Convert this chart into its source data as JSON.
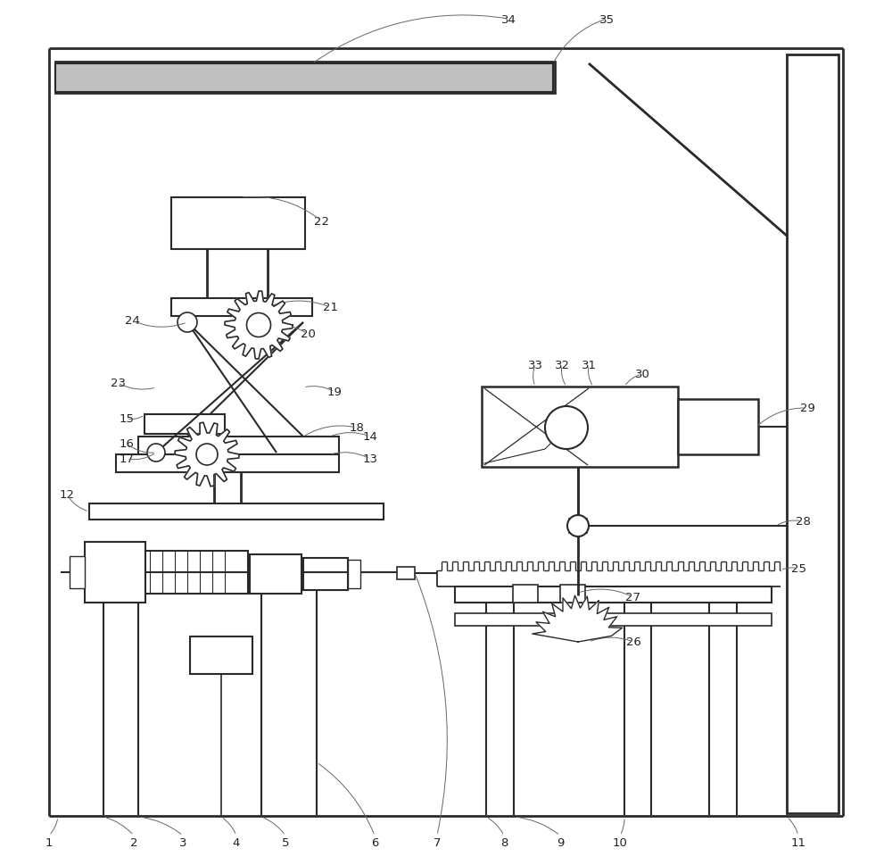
{
  "bg_color": "#ffffff",
  "line_color": "#2a2a2a",
  "fig_width": 10.0,
  "fig_height": 9.7
}
